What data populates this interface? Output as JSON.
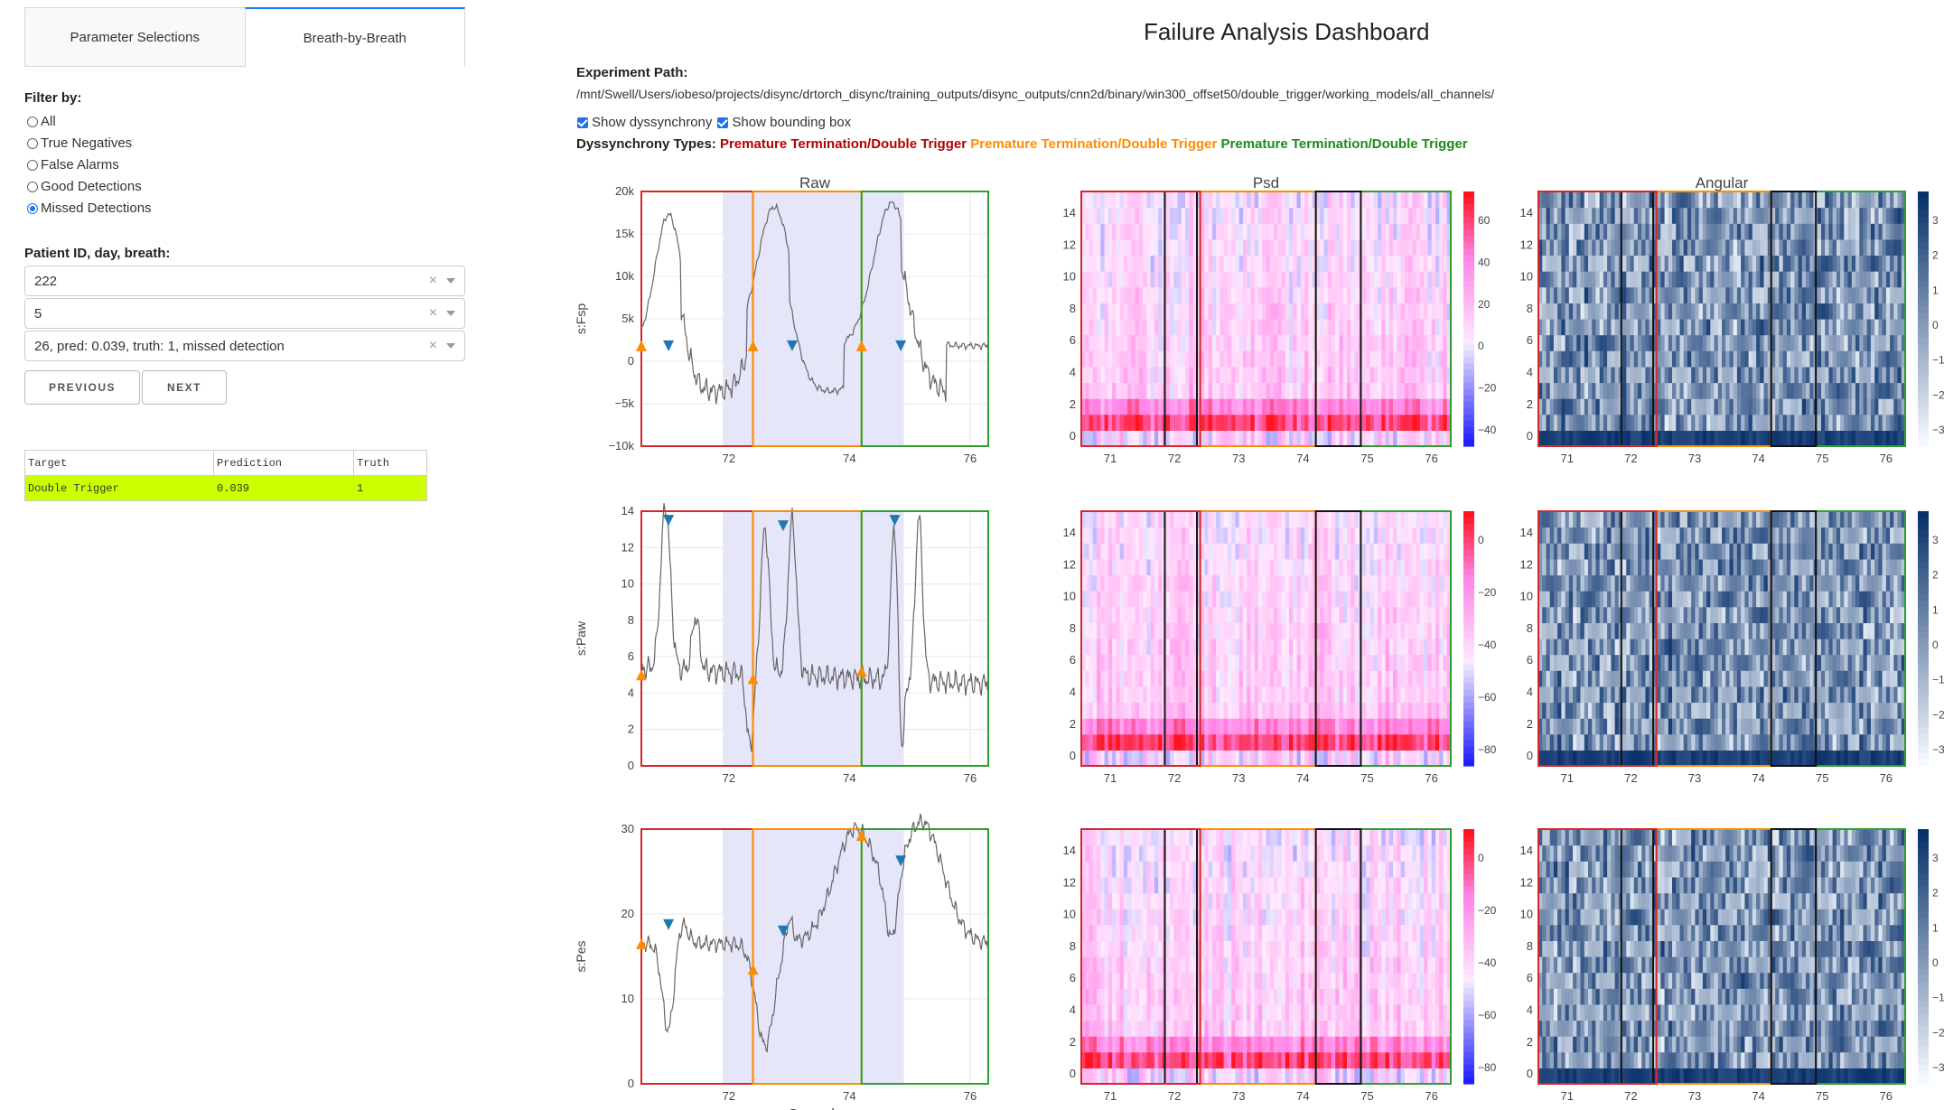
{
  "tabs": [
    {
      "label": "Parameter Selections",
      "active": false
    },
    {
      "label": "Breath-by-Breath",
      "active": true
    }
  ],
  "filter": {
    "label": "Filter by:",
    "options": [
      "All",
      "True Negatives",
      "False Alarms",
      "Good Detections",
      "Missed Detections"
    ],
    "selected": "Missed Detections"
  },
  "patient": {
    "label": "Patient ID, day, breath:",
    "patient_id": "222",
    "day": "5",
    "breath": "26, pred: 0.039, truth: 1, missed detection"
  },
  "buttons": {
    "previous": "PREVIOUS",
    "next": "NEXT"
  },
  "results_table": {
    "headers": [
      "Target",
      "Prediction",
      "Truth"
    ],
    "rows": [
      [
        "Double Trigger",
        "0.039",
        "1"
      ]
    ]
  },
  "dashboard": {
    "title": "Failure Analysis Dashboard",
    "path_label": "Experiment Path:",
    "path": "/mnt/Swell/Users/iobeso/projects/disync/drtorch_disync/training_outputs/disync_outputs/cnn2d/binary/win300_offset50/double_trigger/working_models/all_channels/",
    "show_dyssynchrony": "Show dyssynchrony",
    "show_bounding_box": "Show bounding box",
    "types_label": "Dyssynchrony Types:",
    "types": [
      {
        "text": "Premature Termination/Double Trigger",
        "color": "#b40000"
      },
      {
        "text": "Premature Termination/Double Trigger",
        "color": "#ff8c00"
      },
      {
        "text": "Premature Termination/Double Trigger",
        "color": "#1a8c1a"
      }
    ]
  },
  "chart_data": [
    {
      "type": "line",
      "title": "Raw",
      "ylabel": "s:Fsp",
      "x_ticks": [
        "72",
        "74",
        "76"
      ],
      "y_ticks": [
        "20k",
        "15k",
        "10k",
        "5k",
        "0",
        "−5k",
        "−10k"
      ]
    },
    {
      "type": "line",
      "ylabel": "s:Paw",
      "x_ticks": [
        "72",
        "74",
        "76"
      ],
      "y_ticks": [
        "14",
        "12",
        "10",
        "8",
        "6",
        "4",
        "2",
        "0"
      ]
    },
    {
      "type": "line",
      "ylabel": "s:Pes",
      "xlabel": "Seconds",
      "x_ticks": [
        "72",
        "74",
        "76"
      ],
      "y_ticks": [
        "30",
        "20",
        "10",
        "0"
      ]
    },
    {
      "type": "heatmap",
      "title": "Psd",
      "x_ticks": [
        "71",
        "72",
        "73",
        "74",
        "75",
        "76"
      ],
      "y_ticks": [
        "14",
        "12",
        "10",
        "8",
        "6",
        "4",
        "2",
        "0"
      ],
      "colorbar_ticks": [
        "60",
        "40",
        "20",
        "0",
        "−20",
        "−40"
      ]
    },
    {
      "type": "heatmap",
      "x_ticks": [
        "71",
        "72",
        "73",
        "74",
        "75",
        "76"
      ],
      "y_ticks": [
        "14",
        "12",
        "10",
        "8",
        "6",
        "4",
        "2",
        "0"
      ],
      "colorbar_ticks": [
        "0",
        "−20",
        "−40",
        "−60",
        "−80"
      ]
    },
    {
      "type": "heatmap",
      "x_ticks": [
        "71",
        "72",
        "73",
        "74",
        "75",
        "76"
      ],
      "y_ticks": [
        "14",
        "12",
        "10",
        "8",
        "6",
        "4",
        "2",
        "0"
      ],
      "colorbar_ticks": [
        "0",
        "−20",
        "−40",
        "−60",
        "−80"
      ]
    },
    {
      "type": "heatmap",
      "title": "Angular",
      "x_ticks": [
        "71",
        "72",
        "73",
        "74",
        "75",
        "76"
      ],
      "y_ticks": [
        "14",
        "12",
        "10",
        "8",
        "6",
        "4",
        "2",
        "0"
      ],
      "colorbar_ticks": [
        "3",
        "2",
        "1",
        "0",
        "−1",
        "−2",
        "−3"
      ]
    },
    {
      "type": "heatmap",
      "x_ticks": [
        "71",
        "72",
        "73",
        "74",
        "75",
        "76"
      ],
      "y_ticks": [
        "14",
        "12",
        "10",
        "8",
        "6",
        "4",
        "2",
        "0"
      ],
      "colorbar_ticks": [
        "3",
        "2",
        "1",
        "0",
        "−1",
        "−2",
        "−3"
      ]
    },
    {
      "type": "heatmap",
      "x_ticks": [
        "71",
        "72",
        "73",
        "74",
        "75",
        "76"
      ],
      "y_ticks": [
        "14",
        "12",
        "10",
        "8",
        "6",
        "4",
        "2",
        "0"
      ],
      "colorbar_ticks": [
        "3",
        "2",
        "1",
        "0",
        "−1",
        "−2",
        "−3"
      ]
    }
  ]
}
